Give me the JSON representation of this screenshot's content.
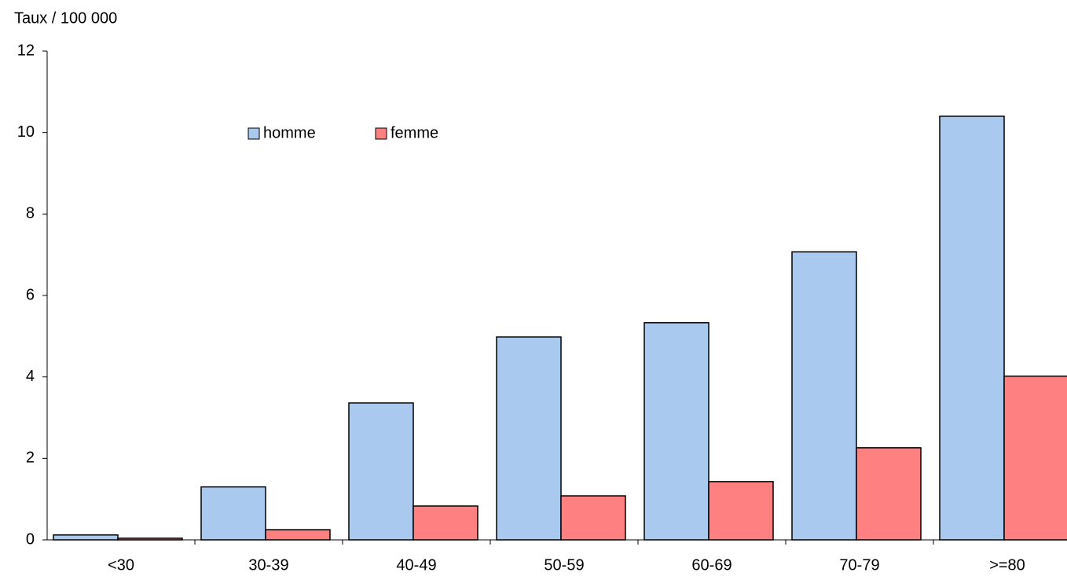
{
  "chart_data": {
    "type": "bar",
    "y_label": "Taux / 100 000",
    "categories": [
      "<30",
      "30-39",
      "40-49",
      "50-59",
      "60-69",
      "70-79",
      ">=80"
    ],
    "series": [
      {
        "name": "homme",
        "color": "#a9c9ef",
        "values": [
          0.12,
          1.3,
          3.36,
          4.98,
          5.33,
          7.07,
          10.4
        ]
      },
      {
        "name": "femme",
        "color": "#ff8080",
        "values": [
          0.04,
          0.25,
          0.83,
          1.08,
          1.43,
          2.26,
          4.02
        ]
      }
    ],
    "ylim": [
      0,
      12
    ],
    "yticks": [
      0,
      2,
      4,
      6,
      8,
      10,
      12
    ],
    "grid": false
  }
}
